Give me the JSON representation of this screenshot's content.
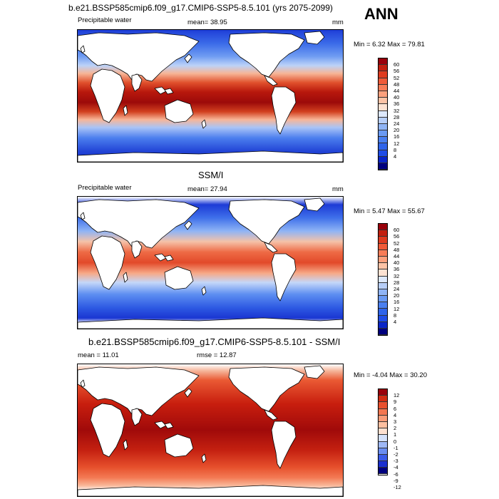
{
  "header": {
    "title": "b.e21.BSSP585cmip6.f09_g17.CMIP6-SSP5-8.5.101 (yrs 2075-2099)",
    "season": "ANN"
  },
  "colors": {
    "pw_scale": [
      "#00007f",
      "#0a25c8",
      "#1f4ce6",
      "#2f64ea",
      "#4a7ff0",
      "#6a9af3",
      "#8fb4f5",
      "#b7cef8",
      "#dde8fb",
      "#fde2d2",
      "#fcc3a6",
      "#fba07d",
      "#f77c57",
      "#ef5a38",
      "#de3b1f",
      "#c21f0f",
      "#99000b"
    ],
    "diff_scale": [
      "#00007f",
      "#1a2fd0",
      "#3b5ce8",
      "#6a8df0",
      "#9fb8f6",
      "#d4e1fb",
      "#fde0d0",
      "#fcbfa0",
      "#f99c78",
      "#f37650",
      "#e8502e",
      "#d12c13",
      "#99000b"
    ]
  },
  "panels": [
    {
      "title": "",
      "label_left": "Precipitable water",
      "label_mid": "mean=  38.95",
      "label_right": "mm",
      "minmax": "Min =   6.32 Max =  79.81",
      "ticks": [
        "60",
        "56",
        "52",
        "48",
        "44",
        "40",
        "36",
        "32",
        "28",
        "24",
        "20",
        "16",
        "12",
        "8",
        "4"
      ]
    },
    {
      "title": "SSM/I",
      "label_left": "Precipitable water",
      "label_mid": "mean=  27.94",
      "label_right": "mm",
      "minmax": "Min =   5.47 Max =  55.67",
      "ticks": [
        "60",
        "56",
        "52",
        "48",
        "44",
        "40",
        "36",
        "32",
        "28",
        "24",
        "20",
        "16",
        "12",
        "8",
        "4"
      ]
    },
    {
      "title": "b.e21.BSSP585cmip6.f09_g17.CMIP6-SSP5-8.5.101 - SSM/I",
      "label_left": "mean =  11.01",
      "label_mid": "rmse =  12.87",
      "label_right": "",
      "minmax": "Min =  -4.04 Max =  30.20",
      "ticks": [
        "12",
        "9",
        "6",
        "4",
        "3",
        "2",
        "1",
        "0",
        "-1",
        "-2",
        "-3",
        "-4",
        "-6",
        "-9",
        "-12"
      ]
    }
  ]
}
